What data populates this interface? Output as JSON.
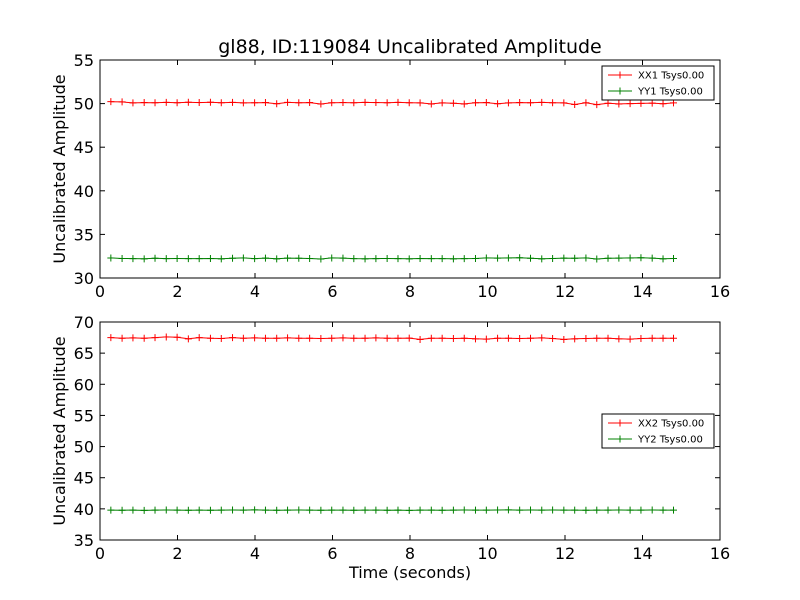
{
  "title": "gl88, ID:119084 Uncalibrated Amplitude",
  "chart_data": [
    {
      "type": "line",
      "title": "gl88, ID:119084 Uncalibrated Amplitude",
      "xlabel": "",
      "ylabel": "Uncalibrated Amplitude",
      "xlim": [
        0,
        16
      ],
      "ylim": [
        30,
        55
      ],
      "xticks": [
        "0",
        "2",
        "4",
        "6",
        "8",
        "10",
        "12",
        "14",
        "16"
      ],
      "yticks": [
        "30",
        "35",
        "40",
        "45",
        "50",
        "55"
      ],
      "legend_position": "top-right",
      "x": [
        0.28,
        0.57,
        0.85,
        1.14,
        1.42,
        1.71,
        1.99,
        2.28,
        2.56,
        2.85,
        3.13,
        3.42,
        3.7,
        3.99,
        4.27,
        4.56,
        4.84,
        5.13,
        5.41,
        5.7,
        5.98,
        6.27,
        6.55,
        6.84,
        7.12,
        7.41,
        7.69,
        7.98,
        8.26,
        8.55,
        8.83,
        9.12,
        9.4,
        9.69,
        9.97,
        10.26,
        10.54,
        10.83,
        11.11,
        11.4,
        11.68,
        11.97,
        12.25,
        12.54,
        12.82,
        13.11,
        13.39,
        13.68,
        13.96,
        14.25,
        14.53,
        14.8
      ],
      "series": [
        {
          "name": "XX1 Tsys0.00",
          "color": "#ff0000",
          "values": [
            50.22,
            50.2,
            50.08,
            50.12,
            50.1,
            50.14,
            50.1,
            50.16,
            50.12,
            50.15,
            50.1,
            50.14,
            50.08,
            50.1,
            50.12,
            49.98,
            50.14,
            50.1,
            50.12,
            49.95,
            50.1,
            50.12,
            50.1,
            50.14,
            50.12,
            50.1,
            50.14,
            50.1,
            50.08,
            49.96,
            50.08,
            50.04,
            49.96,
            50.1,
            50.12,
            49.98,
            50.08,
            50.12,
            50.1,
            50.14,
            50.1,
            50.08,
            49.9,
            50.1,
            49.88,
            50.04,
            49.96,
            50.0,
            50.02,
            50.06,
            49.98,
            50.08
          ]
        },
        {
          "name": "YY1 Tsys0.00",
          "color": "#008000",
          "values": [
            32.3,
            32.24,
            32.22,
            32.2,
            32.26,
            32.22,
            32.24,
            32.22,
            32.22,
            32.24,
            32.2,
            32.26,
            32.3,
            32.22,
            32.28,
            32.2,
            32.28,
            32.26,
            32.24,
            32.18,
            32.3,
            32.28,
            32.22,
            32.2,
            32.22,
            32.24,
            32.22,
            32.2,
            32.24,
            32.22,
            32.22,
            32.2,
            32.22,
            32.24,
            32.3,
            32.28,
            32.3,
            32.32,
            32.26,
            32.2,
            32.24,
            32.28,
            32.26,
            32.3,
            32.18,
            32.26,
            32.28,
            32.3,
            32.32,
            32.28,
            32.2,
            32.24
          ]
        }
      ]
    },
    {
      "type": "line",
      "title": "",
      "xlabel": "Time (seconds)",
      "ylabel": "Uncalibrated Amplitude",
      "xlim": [
        0,
        16
      ],
      "ylim": [
        35,
        70
      ],
      "xticks": [
        "0",
        "2",
        "4",
        "6",
        "8",
        "10",
        "12",
        "14",
        "16"
      ],
      "yticks": [
        "35",
        "40",
        "45",
        "50",
        "55",
        "60",
        "65",
        "70"
      ],
      "legend_position": "center-right",
      "x": [
        0.28,
        0.57,
        0.85,
        1.14,
        1.42,
        1.71,
        1.99,
        2.28,
        2.56,
        2.85,
        3.13,
        3.42,
        3.7,
        3.99,
        4.27,
        4.56,
        4.84,
        5.13,
        5.41,
        5.7,
        5.98,
        6.27,
        6.55,
        6.84,
        7.12,
        7.41,
        7.69,
        7.98,
        8.26,
        8.55,
        8.83,
        9.12,
        9.4,
        9.69,
        9.97,
        10.26,
        10.54,
        10.83,
        11.11,
        11.4,
        11.68,
        11.97,
        12.25,
        12.54,
        12.82,
        13.11,
        13.39,
        13.68,
        13.96,
        14.25,
        14.53,
        14.8
      ],
      "series": [
        {
          "name": "XX2 Tsys0.00",
          "color": "#ff0000",
          "values": [
            67.5,
            67.4,
            67.45,
            67.4,
            67.5,
            67.6,
            67.55,
            67.3,
            67.5,
            67.4,
            67.35,
            67.5,
            67.4,
            67.45,
            67.4,
            67.4,
            67.45,
            67.4,
            67.4,
            67.35,
            67.4,
            67.45,
            67.4,
            67.4,
            67.45,
            67.4,
            67.4,
            67.42,
            67.2,
            67.4,
            67.4,
            67.35,
            67.4,
            67.3,
            67.25,
            67.4,
            67.4,
            67.35,
            67.4,
            67.45,
            67.35,
            67.2,
            67.3,
            67.35,
            67.4,
            67.4,
            67.3,
            67.25,
            67.35,
            67.4,
            67.4,
            67.4
          ]
        },
        {
          "name": "YY2 Tsys0.00",
          "color": "#008000",
          "values": [
            39.8,
            39.78,
            39.8,
            39.76,
            39.8,
            39.82,
            39.8,
            39.78,
            39.8,
            39.78,
            39.8,
            39.82,
            39.8,
            39.84,
            39.8,
            39.78,
            39.8,
            39.82,
            39.8,
            39.78,
            39.8,
            39.8,
            39.78,
            39.8,
            39.8,
            39.78,
            39.8,
            39.76,
            39.8,
            39.8,
            39.78,
            39.8,
            39.82,
            39.8,
            39.8,
            39.82,
            39.84,
            39.8,
            39.82,
            39.8,
            39.82,
            39.8,
            39.8,
            39.78,
            39.8,
            39.8,
            39.82,
            39.8,
            39.8,
            39.82,
            39.8,
            39.8
          ]
        }
      ]
    }
  ]
}
